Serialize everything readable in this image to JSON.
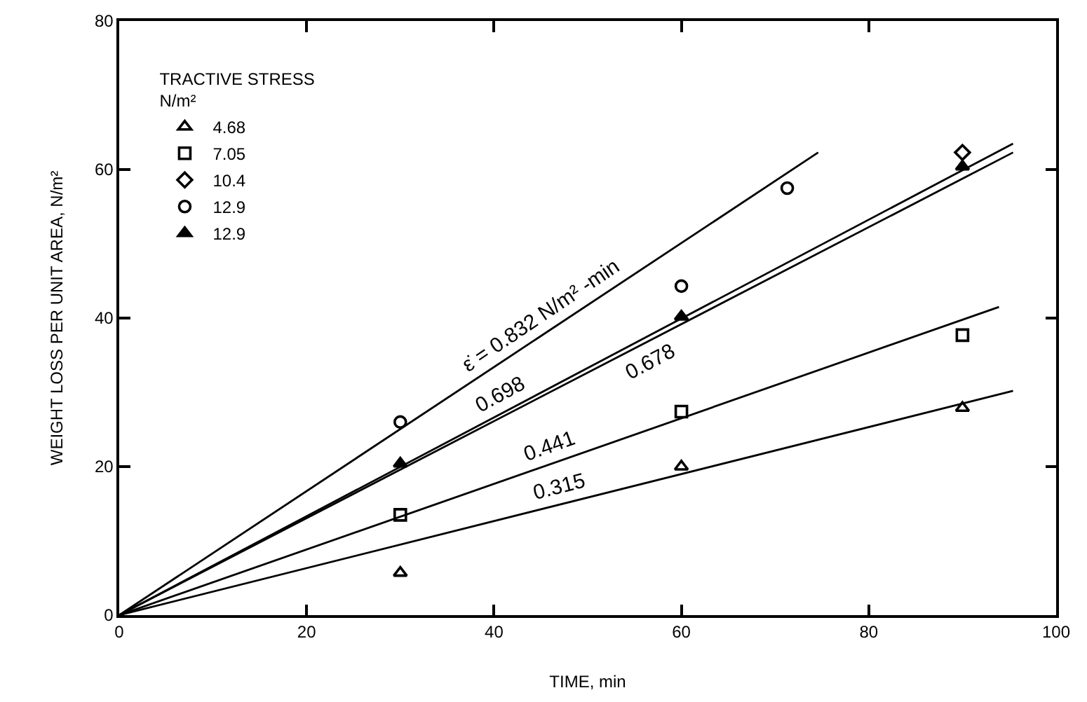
{
  "chart_data": {
    "type": "scatter",
    "xlabel": "TIME, min",
    "ylabel": "WEIGHT LOSS PER UNIT AREA, N/m²",
    "legend_title": "TRACTIVE STRESS\nN/m²",
    "x": [
      30,
      60,
      90
    ],
    "series": [
      {
        "name": "4.68",
        "color": "#000000",
        "marker": "triangle",
        "values": [
          5.7,
          20.0,
          27.9
        ]
      },
      {
        "name": "7.05",
        "color": "#000000",
        "marker": "square",
        "values": [
          13.5,
          27.4,
          37.7
        ]
      },
      {
        "name": "10.4",
        "color": "#000000",
        "marker": "diamond",
        "values": [
          null,
          null,
          62.3
        ]
      },
      {
        "name": "12.9",
        "color": "#000000",
        "marker": "circle",
        "x": [
          30,
          60,
          71.3
        ],
        "values": [
          26.0,
          44.3,
          57.5
        ]
      },
      {
        "name": "12.9",
        "color": "#000000",
        "marker": "triangle",
        "values": [
          20.4,
          40.2,
          60.4
        ]
      },
      {
        "type": "line",
        "color": "#000000",
        "x": [
          0,
          74.6
        ],
        "values": [
          0,
          62.3
        ]
      },
      {
        "type": "line",
        "color": "#000000",
        "x": [
          0,
          95.4
        ],
        "values": [
          0,
          63.5
        ]
      },
      {
        "type": "line",
        "color": "#000000",
        "x": [
          0,
          95.4
        ],
        "values": [
          0,
          62.3
        ]
      },
      {
        "type": "line",
        "color": "#000000",
        "x": [
          0,
          93.9
        ],
        "values": [
          0,
          41.5
        ]
      },
      {
        "type": "line",
        "color": "#000000",
        "x": [
          0,
          95.4
        ],
        "values": [
          0,
          30.2
        ]
      }
    ],
    "annotations": [
      "ε̇ = 0.832 N/m² -min",
      "0.698",
      "0.678",
      "0.441",
      "0.315"
    ],
    "xlim": [
      0,
      100
    ],
    "xticks": [
      0,
      20,
      40,
      60,
      80,
      100
    ],
    "ylim": [
      0,
      80
    ],
    "yticks": [
      0,
      20,
      40,
      60,
      80
    ],
    "legend": "top left"
  }
}
